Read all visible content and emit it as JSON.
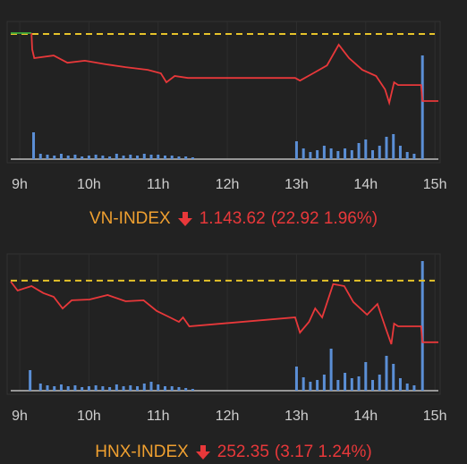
{
  "chart_data": [
    {
      "type": "line",
      "xlim": [
        8.87,
        15.05
      ],
      "xticks": [
        {
          "value": 9,
          "label": "9h"
        },
        {
          "value": 10,
          "label": "10h"
        },
        {
          "value": 11,
          "label": "11h"
        },
        {
          "value": 12,
          "label": "12h"
        },
        {
          "value": 13,
          "label": "13h"
        },
        {
          "value": 14,
          "label": "14h"
        },
        {
          "value": 15,
          "label": "15h"
        }
      ],
      "ylim": [
        1136.9,
        1169
      ],
      "reference": 1166.54,
      "reference_color": "#e6c32a",
      "series": [
        {
          "color": "#3caa3c",
          "x": [
            8.87,
            9.17
          ],
          "values": [
            1166.85,
            1166.85
          ]
        },
        {
          "color": "#e8383a",
          "x": [
            9.17,
            9.18,
            9.21,
            9.49,
            9.69,
            9.94,
            10.27,
            10.53,
            10.85,
            11.04,
            11.12,
            11.24,
            11.43,
            12.98,
            13.05,
            13.24,
            13.44,
            13.61,
            13.76,
            13.95,
            14.15,
            14.28,
            14.34,
            14.41,
            14.47,
            14.8,
            14.82,
            15.05
          ],
          "values": [
            1166.85,
            1161.3,
            1158.3,
            1159.2,
            1156.7,
            1157.4,
            1156.1,
            1155.2,
            1154.3,
            1153.1,
            1150.0,
            1152.2,
            1151.5,
            1151.5,
            1150.6,
            1153.1,
            1155.8,
            1162.9,
            1158.3,
            1154.3,
            1152.2,
            1147.6,
            1143.0,
            1150.0,
            1149.1,
            1149.1,
            1143.62,
            1143.62
          ]
        }
      ],
      "volume": {
        "color": "#5b8fd6",
        "x": [
          9.2,
          9.3,
          9.4,
          9.5,
          9.6,
          9.7,
          9.8,
          9.9,
          10.0,
          10.1,
          10.2,
          10.3,
          10.4,
          10.5,
          10.6,
          10.7,
          10.8,
          10.9,
          11.0,
          11.1,
          11.2,
          11.3,
          11.4,
          11.5,
          13.0,
          13.1,
          13.2,
          13.3,
          13.4,
          13.5,
          13.6,
          13.7,
          13.8,
          13.9,
          14.0,
          14.1,
          14.2,
          14.3,
          14.4,
          14.5,
          14.6,
          14.7,
          14.82
        ],
        "values": [
          30,
          6,
          5,
          4,
          6,
          4,
          5,
          3,
          4,
          5,
          4,
          3,
          6,
          4,
          5,
          4,
          6,
          5,
          5,
          4,
          4,
          3,
          3,
          2,
          20,
          12,
          8,
          10,
          15,
          12,
          9,
          12,
          10,
          18,
          22,
          10,
          15,
          25,
          28,
          15,
          8,
          6,
          116
        ]
      },
      "index_name": "VN-INDEX",
      "last_label": "1.143.62",
      "change_label": "(22.92 1.96%)"
    },
    {
      "type": "line",
      "xlim": [
        8.87,
        15.05
      ],
      "xticks": [
        {
          "value": 9,
          "label": "9h"
        },
        {
          "value": 10,
          "label": "10h"
        },
        {
          "value": 11,
          "label": "11h"
        },
        {
          "value": 12,
          "label": "12h"
        },
        {
          "value": 13,
          "label": "13h"
        },
        {
          "value": 14,
          "label": "14h"
        },
        {
          "value": 15,
          "label": "15h"
        }
      ],
      "ylim": [
        251.1,
        255.93
      ],
      "reference": 255.52,
      "reference_color": "#e6c32a",
      "series": [
        {
          "color": "#e8383a",
          "x": [
            8.87,
            8.97,
            9.17,
            9.34,
            9.49,
            9.62,
            9.75,
            10.01,
            10.27,
            10.53,
            10.79,
            10.98,
            11.17,
            11.3,
            11.36,
            11.45,
            12.98,
            13.05,
            13.18,
            13.27,
            13.37,
            13.53,
            13.69,
            13.82,
            14.02,
            14.17,
            14.28,
            14.37,
            14.41,
            14.47,
            14.8,
            14.82,
            15.05
          ],
          "values": [
            255.47,
            255.01,
            255.24,
            254.88,
            254.69,
            254.09,
            254.51,
            254.55,
            254.78,
            254.46,
            254.51,
            253.96,
            253.63,
            253.4,
            253.63,
            253.17,
            253.63,
            252.85,
            253.4,
            254.09,
            253.63,
            255.34,
            255.24,
            254.42,
            253.77,
            254.32,
            253.17,
            252.25,
            253.31,
            253.17,
            253.17,
            252.35,
            252.35
          ]
        }
      ],
      "volume": {
        "color": "#5b8fd6",
        "x": [
          9.15,
          9.3,
          9.4,
          9.5,
          9.6,
          9.7,
          9.8,
          9.9,
          10.0,
          10.1,
          10.2,
          10.3,
          10.4,
          10.5,
          10.6,
          10.7,
          10.8,
          10.9,
          11.0,
          11.1,
          11.2,
          11.3,
          11.4,
          11.5,
          13.0,
          13.1,
          13.2,
          13.3,
          13.4,
          13.5,
          13.6,
          13.7,
          13.8,
          13.9,
          14.0,
          14.1,
          14.2,
          14.3,
          14.4,
          14.5,
          14.6,
          14.7,
          14.82
        ],
        "values": [
          23,
          8,
          6,
          5,
          7,
          5,
          6,
          4,
          5,
          6,
          5,
          4,
          7,
          5,
          6,
          5,
          8,
          10,
          7,
          5,
          5,
          4,
          3,
          2,
          27,
          15,
          10,
          12,
          18,
          47,
          12,
          20,
          14,
          16,
          32,
          12,
          18,
          39,
          30,
          14,
          8,
          6,
          145
        ]
      },
      "index_name": "HNX-INDEX",
      "last_label": "252.35",
      "change_label": "(3.17 1.24%)"
    }
  ]
}
